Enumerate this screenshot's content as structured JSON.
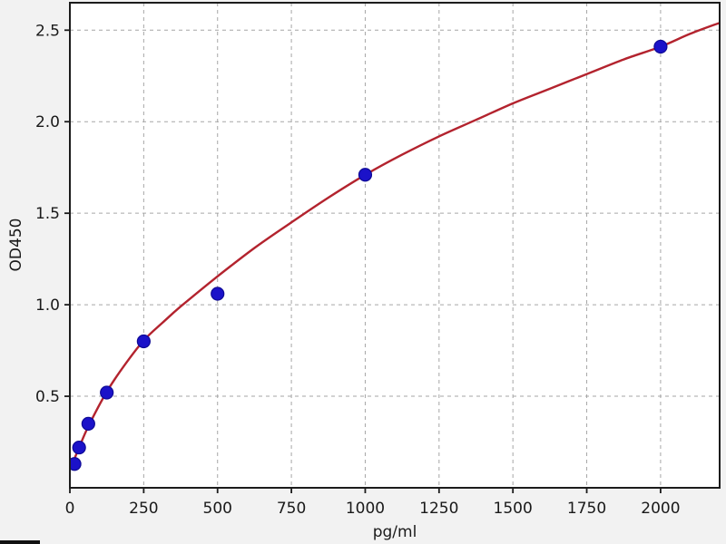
{
  "figure": {
    "background_color": "#f2f2f2",
    "plot_background_color": "#ffffff",
    "spine_color": "#1c1c1c",
    "grid_color": "#a6a6a6",
    "tick_label_color": "#1a1a1a"
  },
  "chart_data": {
    "type": "scatter",
    "title": "",
    "xlabel": "pg/ml",
    "ylabel": "OD450",
    "xlim": [
      0,
      2200
    ],
    "ylim": [
      0,
      2.65
    ],
    "x_ticks": [
      0,
      250,
      500,
      750,
      1000,
      1250,
      1500,
      1750,
      2000
    ],
    "y_ticks": [
      0.5,
      1.0,
      1.5,
      2.0,
      2.5
    ],
    "grid": "dashed",
    "legend_position": "none",
    "series": [
      {
        "name": "standard-points",
        "type": "scatter",
        "marker": "circle",
        "color": "#1b12c9",
        "edge_color": "#0e0a96",
        "points": [
          [
            15.6,
            0.13
          ],
          [
            31.25,
            0.22
          ],
          [
            62.5,
            0.35
          ],
          [
            125,
            0.52
          ],
          [
            250,
            0.8
          ],
          [
            500,
            1.06
          ],
          [
            1000,
            1.71
          ],
          [
            2000,
            2.41
          ]
        ]
      },
      {
        "name": "fitted-curve",
        "type": "line",
        "color": "#b3232e",
        "points": [
          [
            0,
            0.105
          ],
          [
            15.6,
            0.16
          ],
          [
            31.25,
            0.22
          ],
          [
            62.5,
            0.335
          ],
          [
            125,
            0.525
          ],
          [
            187.5,
            0.675
          ],
          [
            250,
            0.805
          ],
          [
            312.5,
            0.9
          ],
          [
            375,
            0.99
          ],
          [
            500,
            1.155
          ],
          [
            625,
            1.31
          ],
          [
            750,
            1.45
          ],
          [
            875,
            1.585
          ],
          [
            1000,
            1.71
          ],
          [
            1125,
            1.82
          ],
          [
            1250,
            1.92
          ],
          [
            1375,
            2.01
          ],
          [
            1500,
            2.1
          ],
          [
            1625,
            2.18
          ],
          [
            1750,
            2.26
          ],
          [
            1875,
            2.34
          ],
          [
            2000,
            2.41
          ],
          [
            2100,
            2.48
          ],
          [
            2200,
            2.54
          ]
        ]
      }
    ]
  }
}
